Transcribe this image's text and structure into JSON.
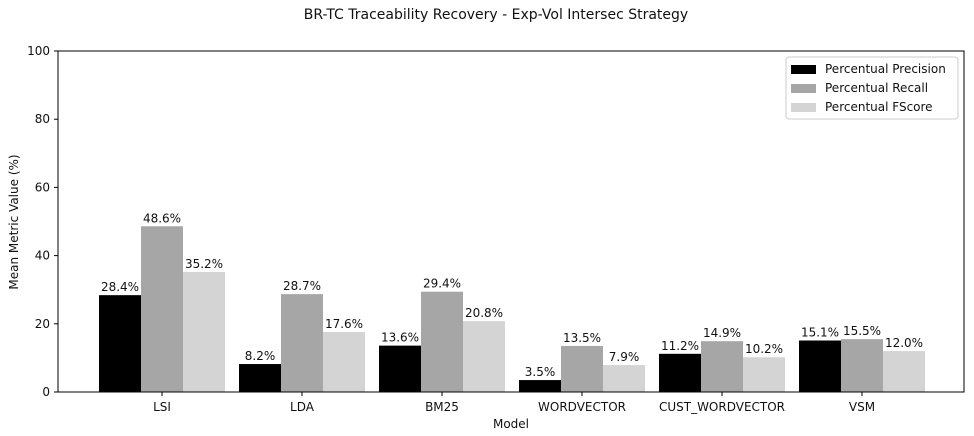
{
  "chart_data": {
    "type": "bar",
    "title": "BR-TC Traceability Recovery - Exp-Vol Intersec Strategy",
    "xlabel": "Model",
    "ylabel": "Mean Metric Value (%)",
    "ylim": [
      0,
      100
    ],
    "yticks": [
      0,
      20,
      40,
      60,
      80,
      100
    ],
    "categories": [
      "LSI",
      "LDA",
      "BM25",
      "WORDVECTOR",
      "CUST_WORDVECTOR",
      "VSM"
    ],
    "series": [
      {
        "name": "Percentual Precision",
        "color": "#000000",
        "values": [
          28.4,
          8.2,
          13.6,
          3.5,
          11.2,
          15.1
        ],
        "labels": [
          "28.4%",
          "8.2%",
          "13.6%",
          "3.5%",
          "11.2%",
          "15.1%"
        ]
      },
      {
        "name": "Percentual Recall",
        "color": "#a6a6a6",
        "values": [
          48.6,
          28.7,
          29.4,
          13.5,
          14.9,
          15.5
        ],
        "labels": [
          "48.6%",
          "28.7%",
          "29.4%",
          "13.5%",
          "14.9%",
          "15.5%"
        ]
      },
      {
        "name": "Percentual FScore",
        "color": "#d4d4d4",
        "values": [
          35.2,
          17.6,
          20.8,
          7.9,
          10.2,
          12.0
        ],
        "labels": [
          "35.2%",
          "17.6%",
          "20.8%",
          "7.9%",
          "10.2%",
          "12.0%"
        ]
      }
    ],
    "legend": "top-right",
    "grid": false
  }
}
